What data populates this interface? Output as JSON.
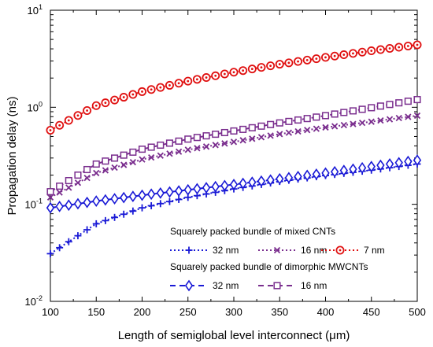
{
  "chart_data": {
    "type": "line",
    "xlabel": "Length of semiglobal level interconnect (μm)",
    "ylabel": "Propagation delay (ns)",
    "xlim": [
      100,
      500
    ],
    "ylim": [
      0.01,
      10
    ],
    "yscale": "log",
    "x_ticks": [
      100,
      150,
      200,
      250,
      300,
      350,
      400,
      450,
      500
    ],
    "y_ticks": [
      {
        "value": 0.01,
        "base": "10",
        "exp": "-2"
      },
      {
        "value": 0.1,
        "base": "10",
        "exp": "-1"
      },
      {
        "value": 1,
        "base": "10",
        "exp": "0"
      },
      {
        "value": 10,
        "base": "10",
        "exp": "1"
      }
    ],
    "grid": false,
    "legend": {
      "placement": "bottom-right",
      "groups": [
        {
          "title": "Squarely packed bundle of mixed CNTs",
          "entries": [
            "32 nm",
            "16 nm",
            "7 nm"
          ]
        },
        {
          "title": "Squarely packed bundle of dimorphic MWCNTs",
          "entries": [
            "32 nm",
            "16 nm"
          ]
        }
      ]
    },
    "series": [
      {
        "name": "32 nm",
        "group": "Squarely packed bundle of mixed CNTs",
        "color": "#1a1ad6",
        "marker": "plus",
        "linestyle": "dotted",
        "x": [
          100,
          150,
          200,
          250,
          300,
          350,
          400,
          450,
          500
        ],
        "y": [
          0.031,
          0.063,
          0.092,
          0.118,
          0.144,
          0.172,
          0.198,
          0.225,
          0.26
        ]
      },
      {
        "name": "16 nm",
        "group": "Squarely packed bundle of mixed CNTs",
        "color": "#7a2e8e",
        "marker": "x",
        "linestyle": "dotted",
        "x": [
          100,
          150,
          200,
          250,
          300,
          350,
          400,
          450,
          500
        ],
        "y": [
          0.118,
          0.21,
          0.29,
          0.365,
          0.44,
          0.53,
          0.62,
          0.71,
          0.82
        ]
      },
      {
        "name": "7 nm",
        "group": "Squarely packed bundle of mixed CNTs",
        "color": "#e01010",
        "marker": "circle-dot",
        "linestyle": "dotted",
        "x": [
          100,
          150,
          200,
          250,
          300,
          350,
          400,
          450,
          500
        ],
        "y": [
          0.58,
          1.04,
          1.45,
          1.86,
          2.3,
          2.78,
          3.27,
          3.82,
          4.4
        ]
      },
      {
        "name": "32 nm",
        "group": "Squarely packed bundle of dimorphic MWCNTs",
        "color": "#1a1ad6",
        "marker": "diamond",
        "linestyle": "dashed",
        "x": [
          100,
          150,
          200,
          250,
          300,
          350,
          400,
          450,
          500
        ],
        "y": [
          0.092,
          0.108,
          0.124,
          0.141,
          0.16,
          0.183,
          0.21,
          0.245,
          0.285
        ]
      },
      {
        "name": "16 nm",
        "group": "Squarely packed bundle of dimorphic MWCNTs",
        "color": "#7a2e8e",
        "marker": "square",
        "linestyle": "dashed",
        "x": [
          100,
          150,
          200,
          250,
          300,
          350,
          400,
          450,
          500
        ],
        "y": [
          0.135,
          0.26,
          0.37,
          0.47,
          0.57,
          0.69,
          0.82,
          0.99,
          1.2
        ]
      }
    ]
  }
}
